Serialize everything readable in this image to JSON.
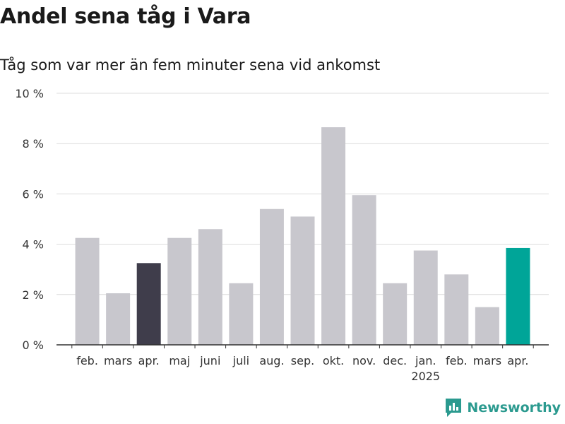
{
  "title": "Andel sena tåg i Vara",
  "subtitle": "Tåg som var mer än fem minuter sena vid ankomst",
  "logo": {
    "text": "Newsworthy",
    "icon": "newsworthy-logo-icon"
  },
  "colors": {
    "bar_default": "#c8c7cd",
    "bar_highlight_dark": "#3f3d4b",
    "bar_highlight_current": "#00a598",
    "grid": "#dcdcdc",
    "axis": "#333333"
  },
  "chart_data": {
    "type": "bar",
    "title": "Andel sena tåg i Vara",
    "subtitle": "Tåg som var mer än fem minuter sena vid ankomst",
    "categories": [
      "feb.",
      "mars",
      "apr.",
      "maj",
      "juni",
      "juli",
      "aug.",
      "sep.",
      "okt.",
      "nov.",
      "dec.",
      "jan.",
      "feb.",
      "mars",
      "apr."
    ],
    "year_labels": [
      {
        "index": 11,
        "label": "2025"
      }
    ],
    "values": [
      4.25,
      2.05,
      3.25,
      4.25,
      4.6,
      2.45,
      5.4,
      5.1,
      8.65,
      5.95,
      2.45,
      3.75,
      2.8,
      1.5,
      3.85
    ],
    "highlight": {
      "2": "dark",
      "14": "current"
    },
    "ylim": [
      0,
      10
    ],
    "yticks": [
      0,
      2,
      4,
      6,
      8,
      10
    ],
    "ytick_labels": [
      "0 %",
      "2 %",
      "4 %",
      "6 %",
      "8 %",
      "10 %"
    ],
    "xlabel": "",
    "ylabel": "",
    "grid": true
  }
}
